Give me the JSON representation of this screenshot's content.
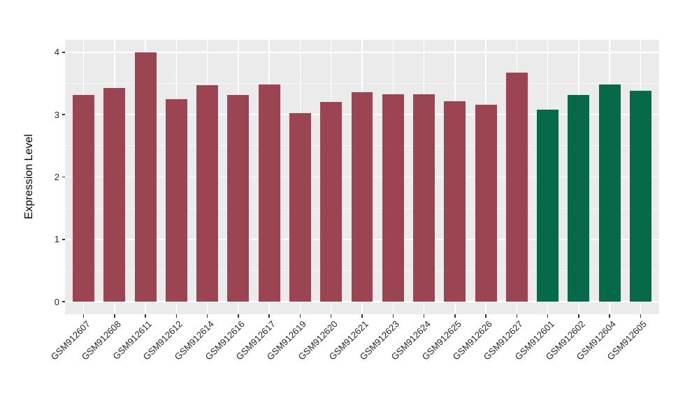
{
  "figure": {
    "background": "#FFFFFF",
    "panel_background": "#EBEBEB",
    "grid_major_color": "#FFFFFF",
    "grid_minor_color": "#FFFFFF",
    "tick_mark_color": "#333333",
    "axis_text_color": "#262626",
    "axis_title_color": "#000000"
  },
  "chart_data": {
    "type": "bar",
    "title": "",
    "xlabel": "",
    "ylabel": "Expression Level",
    "ylim": [
      0,
      4
    ],
    "yticks": [
      0,
      1,
      2,
      3,
      4
    ],
    "grid": {
      "horizontal_major": true,
      "horizontal_minor": true,
      "vertical_major": true
    },
    "legend_position": "none",
    "categories": [
      "GSM912607",
      "GSM912608",
      "GSM912611",
      "GSM912612",
      "GSM912614",
      "GSM912616",
      "GSM912617",
      "GSM912619",
      "GSM912620",
      "GSM912621",
      "GSM912623",
      "GSM912624",
      "GSM912625",
      "GSM912626",
      "GSM912627",
      "GSM912601",
      "GSM912602",
      "GSM912604",
      "GSM912605"
    ],
    "values": [
      3.31,
      3.43,
      4.0,
      3.25,
      3.47,
      3.31,
      3.48,
      3.03,
      3.2,
      3.36,
      3.33,
      3.33,
      3.22,
      3.16,
      3.67,
      3.08,
      3.32,
      3.48,
      3.38
    ],
    "bar_colors": [
      "#9B4452",
      "#9B4452",
      "#9B4452",
      "#9B4452",
      "#9B4452",
      "#9B4452",
      "#9B4452",
      "#9B4452",
      "#9B4452",
      "#9B4452",
      "#9B4452",
      "#9B4452",
      "#9B4452",
      "#9B4452",
      "#9B4452",
      "#05694A",
      "#05694A",
      "#05694A",
      "#05694A"
    ]
  }
}
